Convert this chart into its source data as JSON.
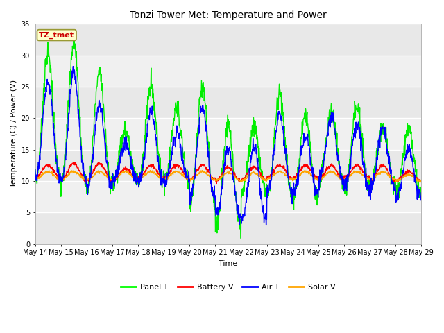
{
  "title": "Tonzi Tower Met: Temperature and Power",
  "xlabel": "Time",
  "ylabel": "Temperature (C) / Power (V)",
  "ylim": [
    0,
    35
  ],
  "yticks": [
    0,
    5,
    10,
    15,
    20,
    25,
    30,
    35
  ],
  "xtick_labels": [
    "May 14",
    "May 15",
    "May 16",
    "May 17",
    "May 18",
    "May 19",
    "May 20",
    "May 21",
    "May 22",
    "May 23",
    "May 24",
    "May 25",
    "May 26",
    "May 27",
    "May 28",
    "May 29"
  ],
  "legend_labels": [
    "Panel T",
    "Battery V",
    "Air T",
    "Solar V"
  ],
  "legend_colors": [
    "#00ff00",
    "#ff0000",
    "#0000ff",
    "#ffa500"
  ],
  "annotation_text": "TZ_tmet",
  "annotation_color": "#cc0000",
  "annotation_bg": "#ffffcc",
  "annotation_border": "#999933",
  "plot_bg": "#e8e8e8",
  "band_light": "#f0f0f0",
  "panel_t_color": "#00ee00",
  "battery_v_color": "#ff0000",
  "air_t_color": "#0000ff",
  "solar_v_color": "#ffa500",
  "line_width": 1.0,
  "title_fontsize": 10,
  "axis_fontsize": 8,
  "tick_fontsize": 7,
  "panel_day_peaks": [
    30.3,
    32.0,
    27.5,
    18.0,
    25.0,
    21.5,
    25.0,
    19.0,
    19.0,
    23.5,
    20.5,
    21.0,
    22.0,
    18.5,
    18.5
  ],
  "panel_day_mins": [
    10.5,
    10.0,
    9.0,
    10.0,
    10.0,
    10.0,
    6.5,
    3.0,
    8.0,
    8.0,
    7.5,
    10.0,
    9.0,
    9.0,
    8.0
  ],
  "air_day_peaks": [
    26.0,
    27.5,
    22.0,
    16.0,
    21.0,
    17.5,
    21.5,
    15.0,
    15.5,
    20.5,
    17.0,
    20.0,
    19.0,
    18.5,
    15.0
  ],
  "air_day_mins": [
    10.5,
    10.0,
    9.0,
    10.0,
    10.0,
    10.0,
    7.5,
    4.5,
    4.0,
    8.5,
    8.0,
    10.0,
    9.0,
    9.0,
    7.5
  ],
  "battery_day_peaks": [
    12.5,
    12.8,
    12.8,
    12.0,
    12.5,
    12.5,
    12.5,
    12.2,
    12.2,
    12.5,
    12.5,
    12.5,
    12.5,
    12.5,
    11.5
  ],
  "battery_day_mins": [
    10.5,
    10.0,
    10.0,
    10.0,
    10.5,
    10.5,
    10.2,
    10.0,
    10.2,
    10.5,
    10.5,
    10.2,
    10.5,
    10.0,
    10.0
  ],
  "solar_day_peaks": [
    11.5,
    11.5,
    11.5,
    11.5,
    11.5,
    11.5,
    11.5,
    11.3,
    11.3,
    11.5,
    11.5,
    11.5,
    11.5,
    11.5,
    11.0
  ],
  "solar_day_mins": [
    10.3,
    10.2,
    10.2,
    10.2,
    10.3,
    10.3,
    10.2,
    10.1,
    10.1,
    10.3,
    10.3,
    10.2,
    10.3,
    10.2,
    10.0
  ]
}
